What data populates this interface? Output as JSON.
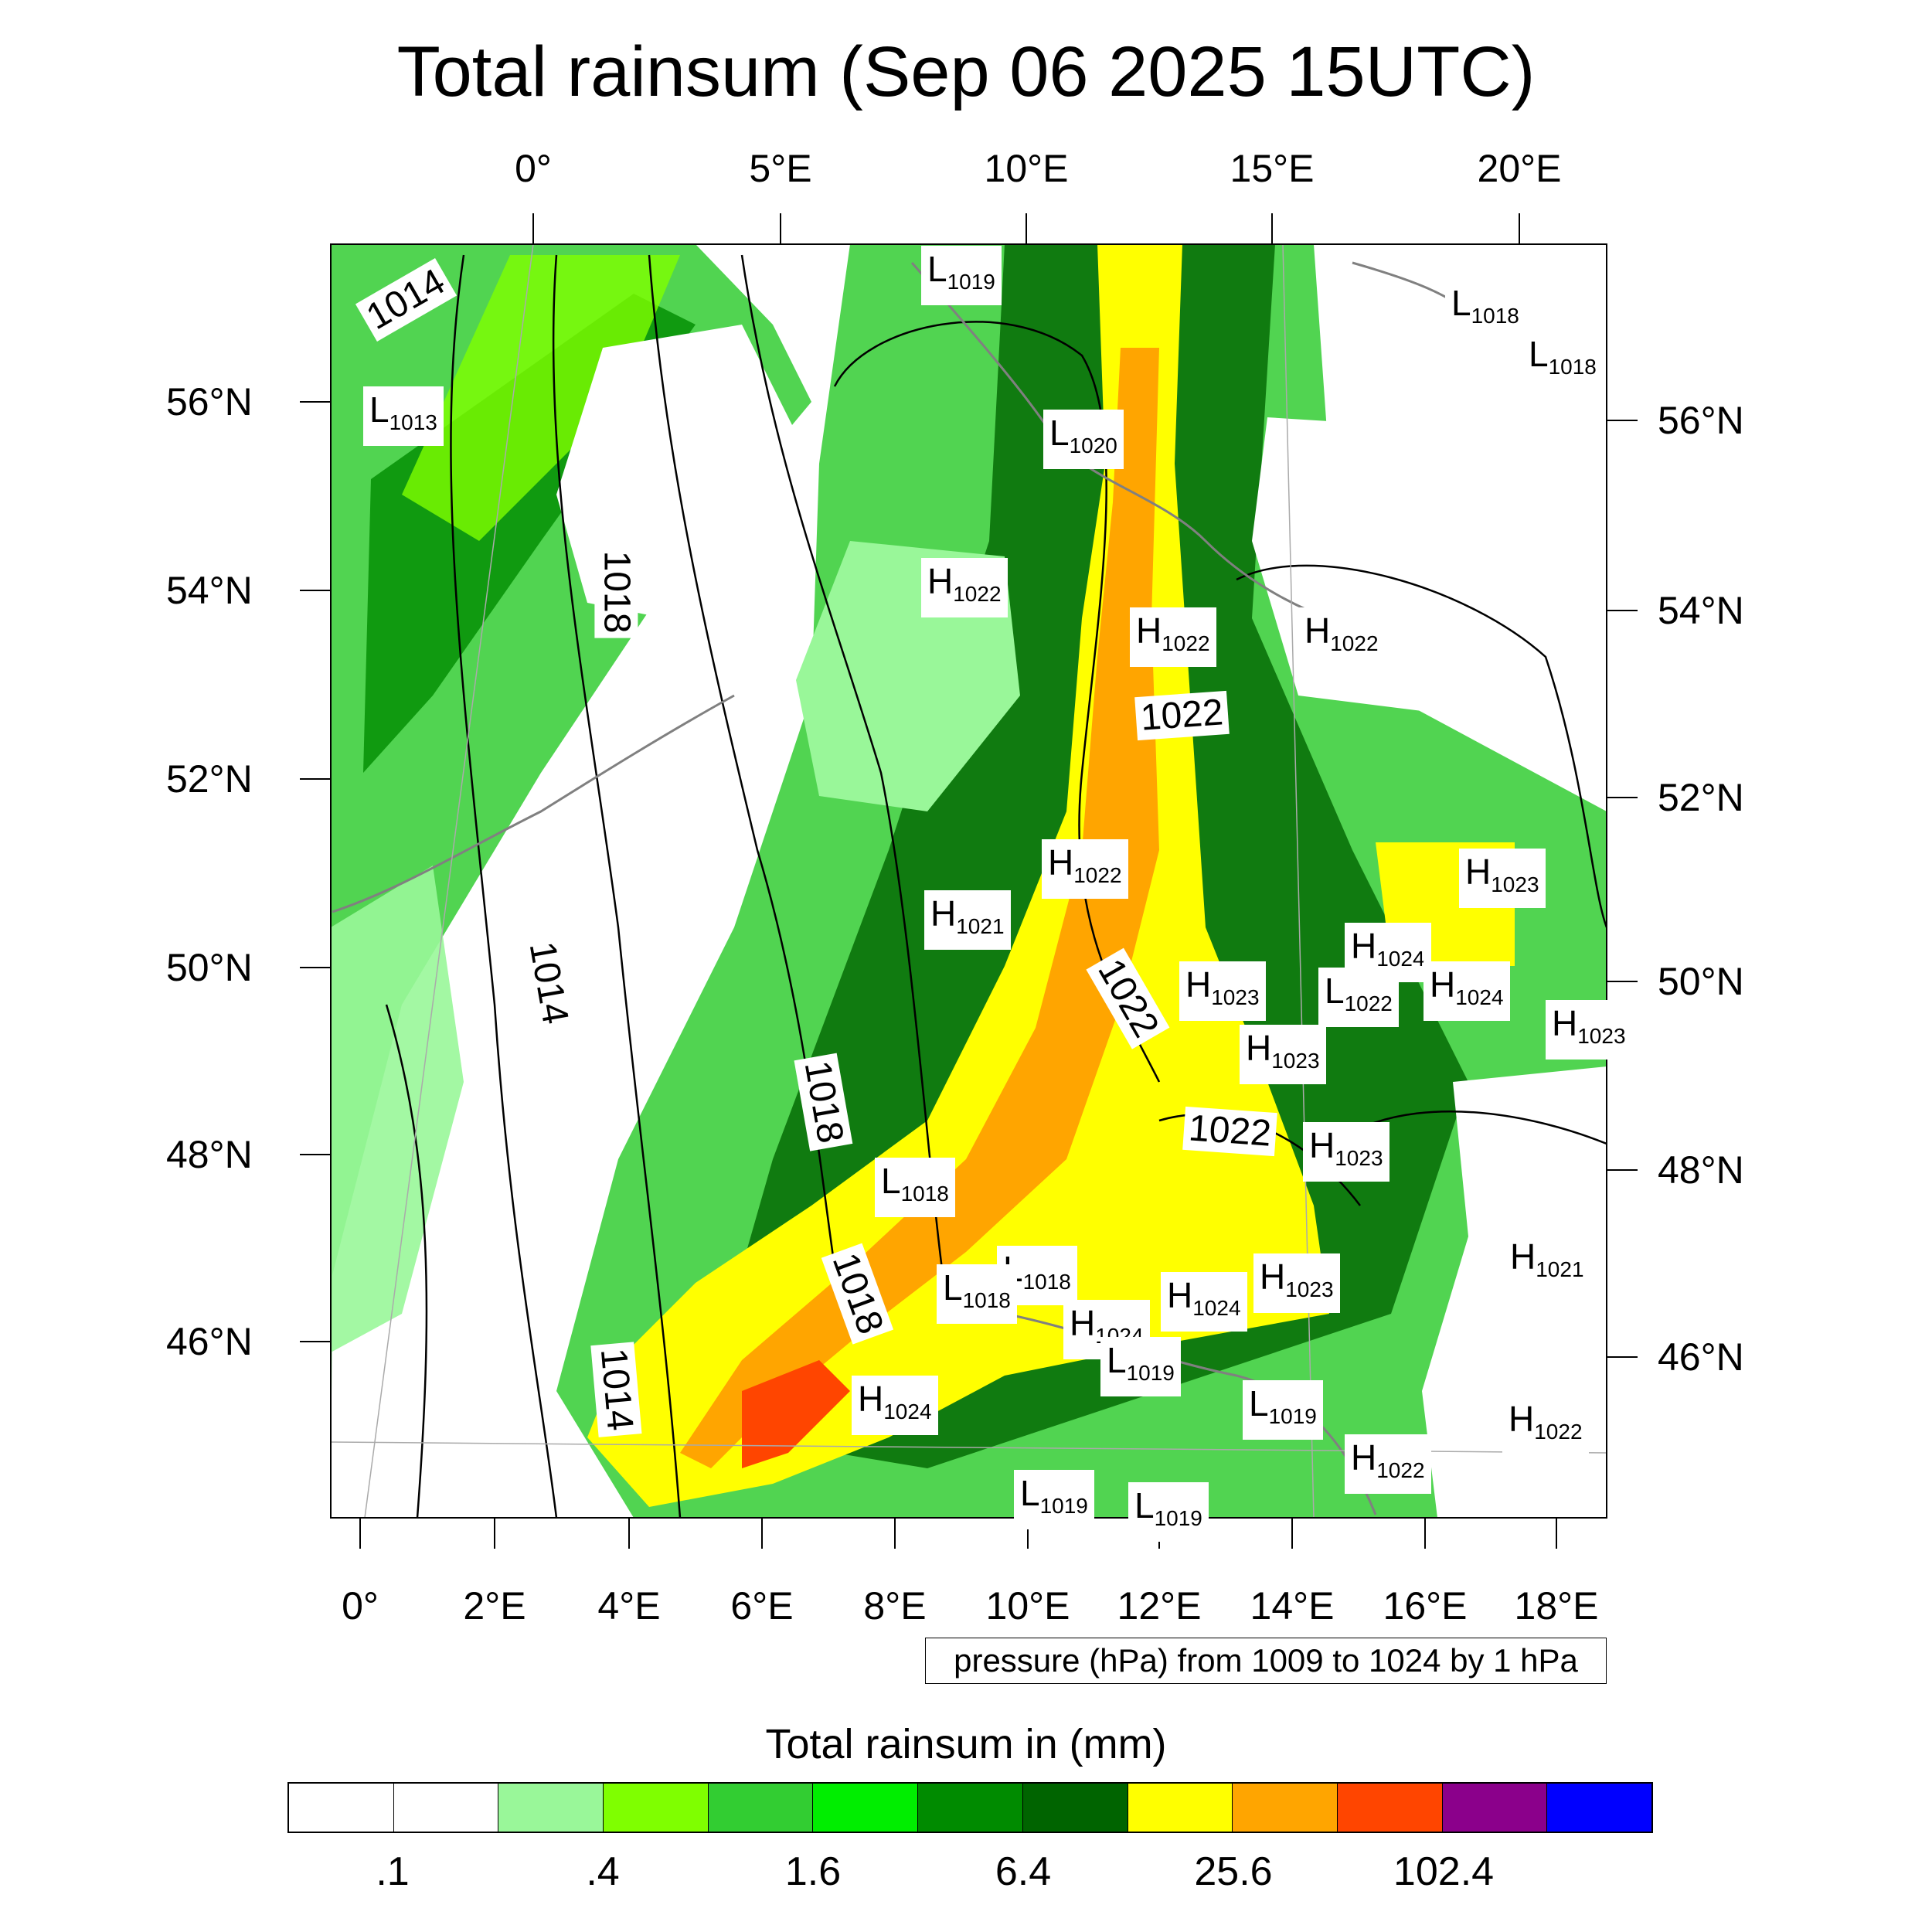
{
  "title": "Total rainsum (Sep 06 2025 15UTC)",
  "axes": {
    "top_lon": [
      "0°",
      "5°E",
      "10°E",
      "15°E",
      "20°E"
    ],
    "bottom_lon": [
      "0°",
      "2°E",
      "4°E",
      "6°E",
      "8°E",
      "10°E",
      "12°E",
      "14°E",
      "16°E",
      "18°E"
    ],
    "left_lat": [
      "56°N",
      "54°N",
      "52°N",
      "50°N",
      "48°N",
      "46°N"
    ],
    "right_lat": [
      "56°N",
      "54°N",
      "52°N",
      "50°N",
      "48°N",
      "46°N"
    ]
  },
  "pressure_note": "pressure (hPa) from 1009 to 1024 by 1 hPa",
  "colorbar": {
    "title": "Total rainsum in (mm)",
    "colors": [
      "#ffffff",
      "#ffffff",
      "#99f799",
      "#7fff00",
      "#32cd32",
      "#00ee00",
      "#008b00",
      "#006400",
      "#ffff00",
      "#ffa500",
      "#ff4500",
      "#8b008b",
      "#0000ff"
    ],
    "labels": [
      ".1",
      ".4",
      "1.6",
      "6.4",
      "25.6",
      "102.4"
    ]
  },
  "pressure_labels": [
    {
      "type": "L",
      "value": "1019"
    },
    {
      "type": "L",
      "value": "1018"
    },
    {
      "type": "L",
      "value": "1018"
    },
    {
      "type": "L",
      "value": "1013"
    },
    {
      "type": "L",
      "value": "1020"
    },
    {
      "type": "H",
      "value": "1022"
    },
    {
      "type": "H",
      "value": "1022"
    },
    {
      "type": "H",
      "value": "1022"
    },
    {
      "type": "H",
      "value": "1022"
    },
    {
      "type": "H",
      "value": "1021"
    },
    {
      "type": "H",
      "value": "1023"
    },
    {
      "type": "H",
      "value": "1024"
    },
    {
      "type": "H",
      "value": "1023"
    },
    {
      "type": "L",
      "value": "1022"
    },
    {
      "type": "H",
      "value": "1024"
    },
    {
      "type": "H",
      "value": "1023"
    },
    {
      "type": "H",
      "value": "1023"
    },
    {
      "type": "L",
      "value": "1018"
    },
    {
      "type": "H",
      "value": "1023"
    },
    {
      "type": "H",
      "value": "1021"
    },
    {
      "type": "L",
      "value": "1018"
    },
    {
      "type": "L",
      "value": "1018"
    },
    {
      "type": "H",
      "value": "1024"
    },
    {
      "type": "H",
      "value": "1023"
    },
    {
      "type": "H",
      "value": "1024"
    },
    {
      "type": "L",
      "value": "1019"
    },
    {
      "type": "H",
      "value": "1024"
    },
    {
      "type": "L",
      "value": "1019"
    },
    {
      "type": "H",
      "value": "1022"
    },
    {
      "type": "H",
      "value": "1022"
    },
    {
      "type": "L",
      "value": "1019"
    },
    {
      "type": "L",
      "value": "1019"
    }
  ],
  "isobar_labels": [
    "1014",
    "1018",
    "1022",
    "1022",
    "1014",
    "1018",
    "1022",
    "1018",
    "1014"
  ]
}
